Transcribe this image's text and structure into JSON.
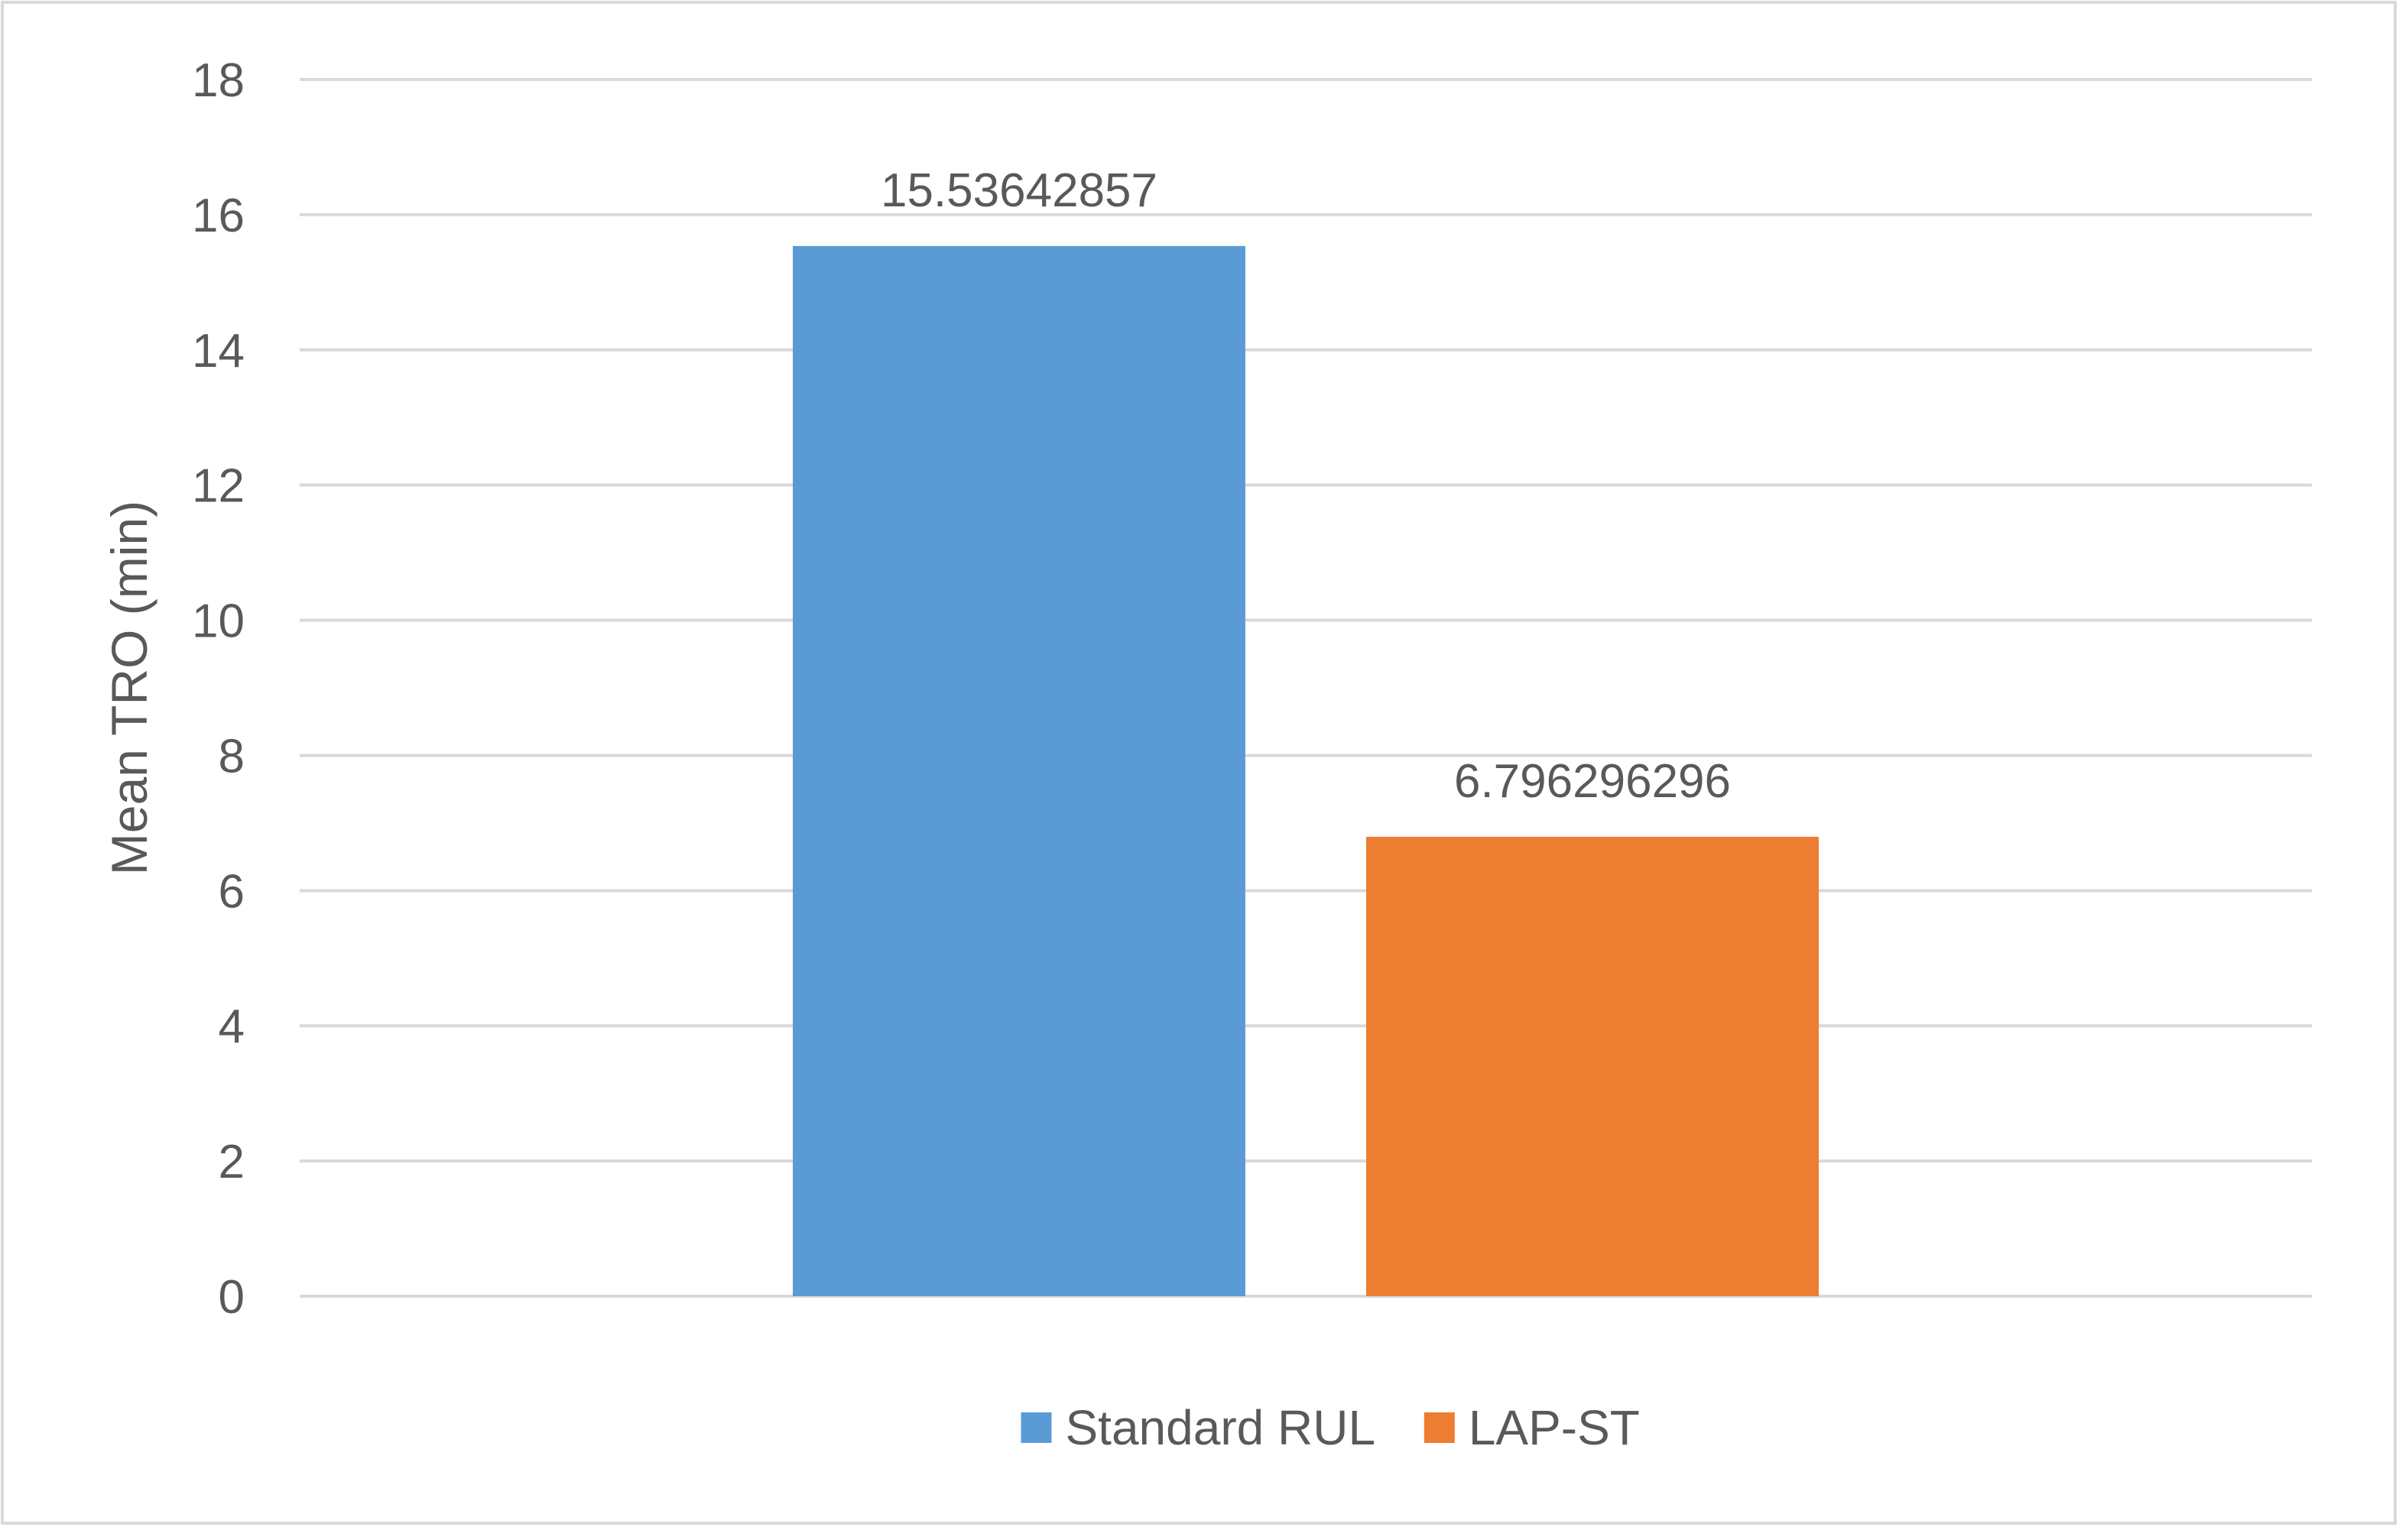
{
  "chart_data": {
    "type": "bar",
    "title": "",
    "xlabel": "",
    "ylabel": "Mean TRO (min)",
    "ylim": [
      0,
      18
    ],
    "yticks": [
      0,
      2,
      4,
      6,
      8,
      10,
      12,
      14,
      16,
      18
    ],
    "grid": true,
    "legend_position": "bottom",
    "categories": [
      ""
    ],
    "series": [
      {
        "name": "Standard RUL",
        "values": [
          15.53642857
        ],
        "label": "15.53642857",
        "color": "#5B9BD5"
      },
      {
        "name": "LAP-ST",
        "values": [
          6.796296296
        ],
        "label": "6.796296296",
        "color": "#ED7D31"
      }
    ]
  }
}
